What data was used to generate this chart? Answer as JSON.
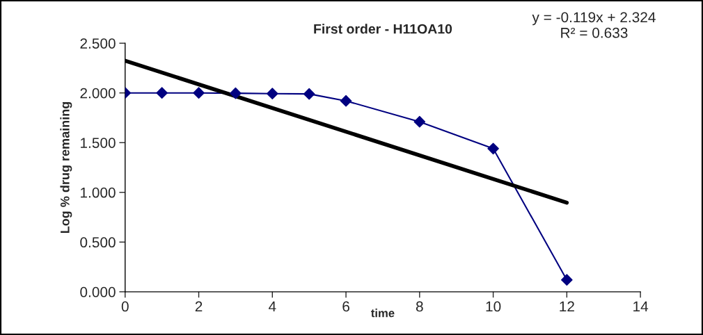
{
  "chart_data": {
    "type": "line",
    "title": "First order - H11OA10",
    "xlabel": "time",
    "ylabel": "Log % drug remaining",
    "xlim": [
      0,
      14
    ],
    "xticks": [
      0,
      2,
      4,
      6,
      8,
      10,
      12,
      14
    ],
    "ylim": [
      0,
      2.5
    ],
    "yticks": [
      {
        "value": 0,
        "label": "0.000"
      },
      {
        "value": 0.5,
        "label": "0.500"
      },
      {
        "value": 1,
        "label": "1.000"
      },
      {
        "value": 1.5,
        "label": "1.500"
      },
      {
        "value": 2,
        "label": "2.000"
      },
      {
        "value": 2.5,
        "label": "2.500"
      }
    ],
    "grid": false,
    "legend": false,
    "series": [
      {
        "color": "#000080",
        "marker": "diamond",
        "x": [
          0,
          1,
          2,
          3,
          4,
          5,
          6,
          8,
          10,
          12
        ],
        "values": [
          2.0,
          2.0,
          2.0,
          1.997,
          1.993,
          1.99,
          1.92,
          1.71,
          1.44,
          0.12
        ]
      },
      {
        "color": "#000000",
        "marker": "none",
        "x": [
          0,
          12
        ],
        "values": [
          2.324,
          0.896
        ]
      }
    ],
    "annotations": [
      "y = -0.119x + 2.324\nR² = 0.633"
    ]
  }
}
